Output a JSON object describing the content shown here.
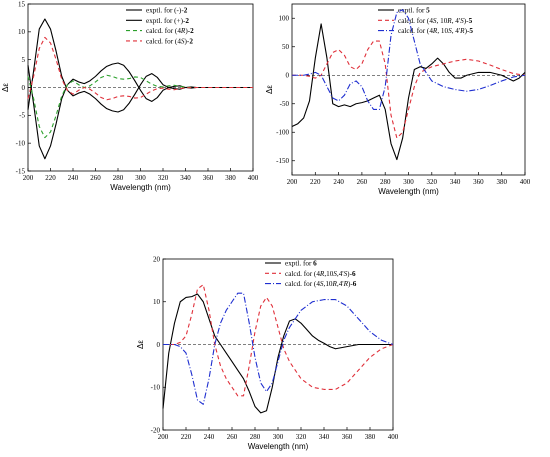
{
  "chart_data": [
    {
      "type": "line",
      "xlabel": "Wavelength (nm)",
      "ylabel": "Δε",
      "xlim": [
        200,
        400
      ],
      "ylim": [
        -15,
        15
      ],
      "xticks": [
        200,
        220,
        240,
        260,
        280,
        300,
        320,
        340,
        360,
        380,
        400
      ],
      "yticks": [
        -15,
        -10,
        -5,
        0,
        5,
        10,
        15
      ],
      "legend_position": "top-right",
      "series": [
        {
          "legend_prefix": "exptl. for (-)-",
          "legend_bold": "2",
          "color": "#000000",
          "dash": "solid",
          "x": [
            200,
            205,
            210,
            215,
            220,
            225,
            230,
            235,
            240,
            245,
            250,
            255,
            260,
            265,
            270,
            275,
            280,
            285,
            290,
            295,
            300,
            305,
            310,
            315,
            320,
            325,
            330,
            335,
            340,
            345,
            350,
            400
          ],
          "y": [
            -4,
            3,
            10.5,
            12.3,
            10.5,
            6.5,
            2,
            -0.5,
            -1.5,
            -1,
            -0.7,
            -1.2,
            -2,
            -3,
            -3.8,
            -4.2,
            -4.4,
            -4,
            -2.8,
            -1.2,
            0.5,
            2,
            2.5,
            1.8,
            0.5,
            0,
            -0.2,
            -0.3,
            0,
            0.1,
            0,
            0
          ]
        },
        {
          "legend_prefix": "exptl. for (+)-",
          "legend_bold": "2",
          "color": "#000000",
          "dash": "solid",
          "x": [
            200,
            205,
            210,
            215,
            220,
            225,
            230,
            235,
            240,
            245,
            250,
            255,
            260,
            265,
            270,
            275,
            280,
            285,
            290,
            295,
            300,
            305,
            310,
            315,
            320,
            325,
            330,
            335,
            340,
            345,
            350,
            400
          ],
          "y": [
            4,
            -3,
            -10.5,
            -12.8,
            -10.5,
            -6.5,
            -2,
            0.5,
            1.5,
            1,
            0.7,
            1.2,
            2,
            3,
            3.8,
            4.2,
            4.4,
            4,
            2.8,
            1.2,
            -0.5,
            -2,
            -2.5,
            -1.8,
            -0.5,
            0,
            0.2,
            0.3,
            0,
            -0.1,
            0,
            0
          ]
        },
        {
          "legend_prefix": "calcd. for (4",
          "legend_italic": "R",
          "legend_suffix": ")-",
          "legend_bold": "2",
          "color": "#2ca02c",
          "dash": "4,3",
          "x": [
            200,
            205,
            210,
            215,
            220,
            225,
            230,
            235,
            240,
            245,
            250,
            255,
            260,
            265,
            270,
            275,
            280,
            285,
            290,
            295,
            300,
            305,
            310,
            315,
            320,
            325,
            330,
            335,
            340,
            350,
            400
          ],
          "y": [
            2,
            -2,
            -7,
            -9,
            -8,
            -5,
            -1.5,
            0.5,
            1.2,
            0.5,
            0,
            0.3,
            1,
            1.8,
            2.2,
            2,
            1.6,
            1.5,
            1.6,
            1.9,
            1.8,
            1.2,
            0.6,
            0.2,
            0.1,
            0.3,
            0.4,
            0.2,
            0.05,
            0,
            0
          ]
        },
        {
          "legend_prefix": "calcd. for (4",
          "legend_italic": "S",
          "legend_suffix": ")-",
          "legend_bold": "2",
          "color": "#e0303a",
          "dash": "4,3",
          "x": [
            200,
            205,
            210,
            215,
            220,
            225,
            230,
            235,
            240,
            245,
            250,
            255,
            260,
            265,
            270,
            275,
            280,
            285,
            290,
            295,
            300,
            305,
            310,
            315,
            320,
            325,
            330,
            335,
            340,
            350,
            400
          ],
          "y": [
            -2,
            2,
            7,
            9,
            8,
            5,
            1.5,
            -0.5,
            -1.2,
            -0.5,
            0,
            -0.3,
            -1,
            -1.8,
            -2.2,
            -2,
            -1.6,
            -1.5,
            -1.6,
            -1.9,
            -1.8,
            -1.2,
            -0.6,
            -0.2,
            -0.1,
            -0.3,
            -0.4,
            -0.2,
            -0.05,
            0,
            0
          ]
        }
      ]
    },
    {
      "type": "line",
      "xlabel": "Wavelength (nm)",
      "ylabel": "Δε",
      "xlim": [
        200,
        400
      ],
      "ylim": [
        -175,
        125
      ],
      "xticks": [
        200,
        220,
        240,
        260,
        280,
        300,
        320,
        340,
        360,
        380,
        400
      ],
      "yticks": [
        -150,
        -100,
        -50,
        0,
        50,
        100
      ],
      "legend_position": "top-right",
      "series": [
        {
          "legend_prefix": "exptl. for ",
          "legend_bold": "5",
          "color": "#000000",
          "dash": "solid",
          "x": [
            200,
            205,
            210,
            215,
            220,
            225,
            230,
            235,
            240,
            245,
            250,
            255,
            260,
            265,
            270,
            275,
            280,
            285,
            290,
            295,
            300,
            305,
            310,
            315,
            320,
            325,
            330,
            335,
            340,
            345,
            350,
            360,
            370,
            380,
            390,
            395,
            400
          ],
          "y": [
            -90,
            -85,
            -75,
            -45,
            30,
            90,
            30,
            -50,
            -55,
            -52,
            -55,
            -50,
            -48,
            -45,
            -40,
            -35,
            -60,
            -120,
            -148,
            -110,
            -40,
            10,
            15,
            12,
            20,
            30,
            20,
            5,
            -5,
            -5,
            0,
            5,
            5,
            0,
            -10,
            -5,
            5
          ]
        },
        {
          "legend_prefix": "calcd. for (4",
          "legend_italic": "S",
          "legend_suffix": ", 10",
          "legend_italic2": "R",
          "legend_suffix2": ", 4'",
          "legend_italic3": "S",
          "legend_suffix3": ")-",
          "legend_bold": "5",
          "color": "#e0303a",
          "dash": "4,3",
          "x": [
            200,
            210,
            215,
            220,
            225,
            230,
            235,
            240,
            245,
            250,
            255,
            260,
            265,
            270,
            275,
            280,
            285,
            290,
            295,
            300,
            305,
            310,
            320,
            330,
            340,
            350,
            360,
            370,
            380,
            390,
            400
          ],
          "y": [
            0,
            0,
            -2,
            -5,
            0,
            20,
            40,
            45,
            35,
            15,
            10,
            20,
            45,
            60,
            60,
            20,
            -70,
            -110,
            -100,
            -60,
            -20,
            5,
            15,
            20,
            25,
            28,
            25,
            18,
            10,
            3,
            0
          ]
        },
        {
          "legend_prefix": "calcd. for (4",
          "legend_italic": "R",
          "legend_suffix": ", 10",
          "legend_italic2": "S",
          "legend_suffix2": ", 4'",
          "legend_italic3": "R",
          "legend_suffix3": ")-",
          "legend_bold": "5",
          "color": "#1f2fd0",
          "dash": "6,2,1,2",
          "x": [
            200,
            210,
            215,
            220,
            225,
            230,
            235,
            240,
            245,
            250,
            255,
            260,
            265,
            270,
            275,
            280,
            285,
            290,
            295,
            300,
            305,
            310,
            320,
            330,
            340,
            350,
            360,
            370,
            380,
            390,
            400
          ],
          "y": [
            0,
            0,
            2,
            5,
            0,
            -20,
            -40,
            -45,
            -35,
            -15,
            -10,
            -20,
            -45,
            -60,
            -60,
            -20,
            70,
            110,
            115,
            100,
            60,
            20,
            -10,
            -20,
            -25,
            -28,
            -25,
            -18,
            -10,
            -3,
            0
          ]
        }
      ]
    },
    {
      "type": "line",
      "xlabel": "Wavelength (nm)",
      "ylabel": "Δε",
      "xlim": [
        200,
        400
      ],
      "ylim": [
        -20,
        20
      ],
      "xticks": [
        200,
        220,
        240,
        260,
        280,
        300,
        320,
        340,
        360,
        380,
        400
      ],
      "yticks": [
        -20,
        -10,
        0,
        10,
        20
      ],
      "legend_position": "top-right",
      "series": [
        {
          "legend_prefix": "exptl. for ",
          "legend_bold": "6",
          "color": "#000000",
          "dash": "solid",
          "x": [
            200,
            205,
            210,
            215,
            220,
            225,
            230,
            235,
            240,
            245,
            250,
            255,
            260,
            265,
            270,
            275,
            280,
            285,
            290,
            295,
            300,
            305,
            310,
            315,
            320,
            325,
            330,
            335,
            340,
            345,
            350,
            360,
            370,
            380,
            390,
            400
          ],
          "y": [
            -15,
            -2,
            5,
            10,
            11,
            11.2,
            11.8,
            10,
            6,
            2,
            0,
            -2,
            -4,
            -6,
            -8,
            -11,
            -14.5,
            -16,
            -15.5,
            -10,
            -3,
            2,
            5.5,
            6,
            5,
            3.5,
            2,
            1,
            0.3,
            -0.5,
            -1,
            -0.5,
            0,
            0,
            0,
            0
          ]
        },
        {
          "legend_prefix": "calcd. for (4",
          "legend_italic": "R",
          "legend_suffix": ",10",
          "legend_italic2": "S",
          "legend_suffix2": ",4'",
          "legend_italic3": "S",
          "legend_suffix3": ")-",
          "legend_bold": "6",
          "color": "#e0303a",
          "dash": "4,3",
          "x": [
            200,
            210,
            215,
            220,
            225,
            230,
            235,
            240,
            245,
            250,
            255,
            260,
            265,
            270,
            275,
            280,
            285,
            290,
            295,
            300,
            305,
            310,
            320,
            330,
            340,
            350,
            360,
            370,
            380,
            390,
            400
          ],
          "y": [
            0,
            0,
            0.5,
            2,
            7,
            13,
            14,
            8,
            0,
            -5,
            -8,
            -10,
            -12,
            -12,
            -5,
            3,
            9,
            11,
            9,
            4,
            -1,
            -4,
            -8,
            -10,
            -10.5,
            -10.5,
            -9,
            -6,
            -3,
            -1,
            0
          ]
        },
        {
          "legend_prefix": "calcd. for (4",
          "legend_italic": "S",
          "legend_suffix": ",10",
          "legend_italic2": "R",
          "legend_suffix2": ",4'",
          "legend_italic3": "R",
          "legend_suffix3": ")-",
          "legend_bold": "6",
          "color": "#1f2fd0",
          "dash": "6,2,1,2",
          "x": [
            200,
            210,
            215,
            220,
            225,
            230,
            235,
            240,
            245,
            250,
            255,
            260,
            265,
            270,
            275,
            280,
            285,
            290,
            295,
            300,
            305,
            310,
            320,
            330,
            340,
            350,
            360,
            370,
            380,
            390,
            400
          ],
          "y": [
            0,
            0,
            -0.5,
            -2,
            -7,
            -13,
            -14,
            -8,
            0,
            5,
            8,
            10,
            12,
            12,
            5,
            -3,
            -9,
            -11,
            -9,
            -4,
            1,
            4,
            8,
            10,
            10.5,
            10.5,
            9,
            6,
            3,
            1,
            0
          ]
        }
      ]
    }
  ]
}
